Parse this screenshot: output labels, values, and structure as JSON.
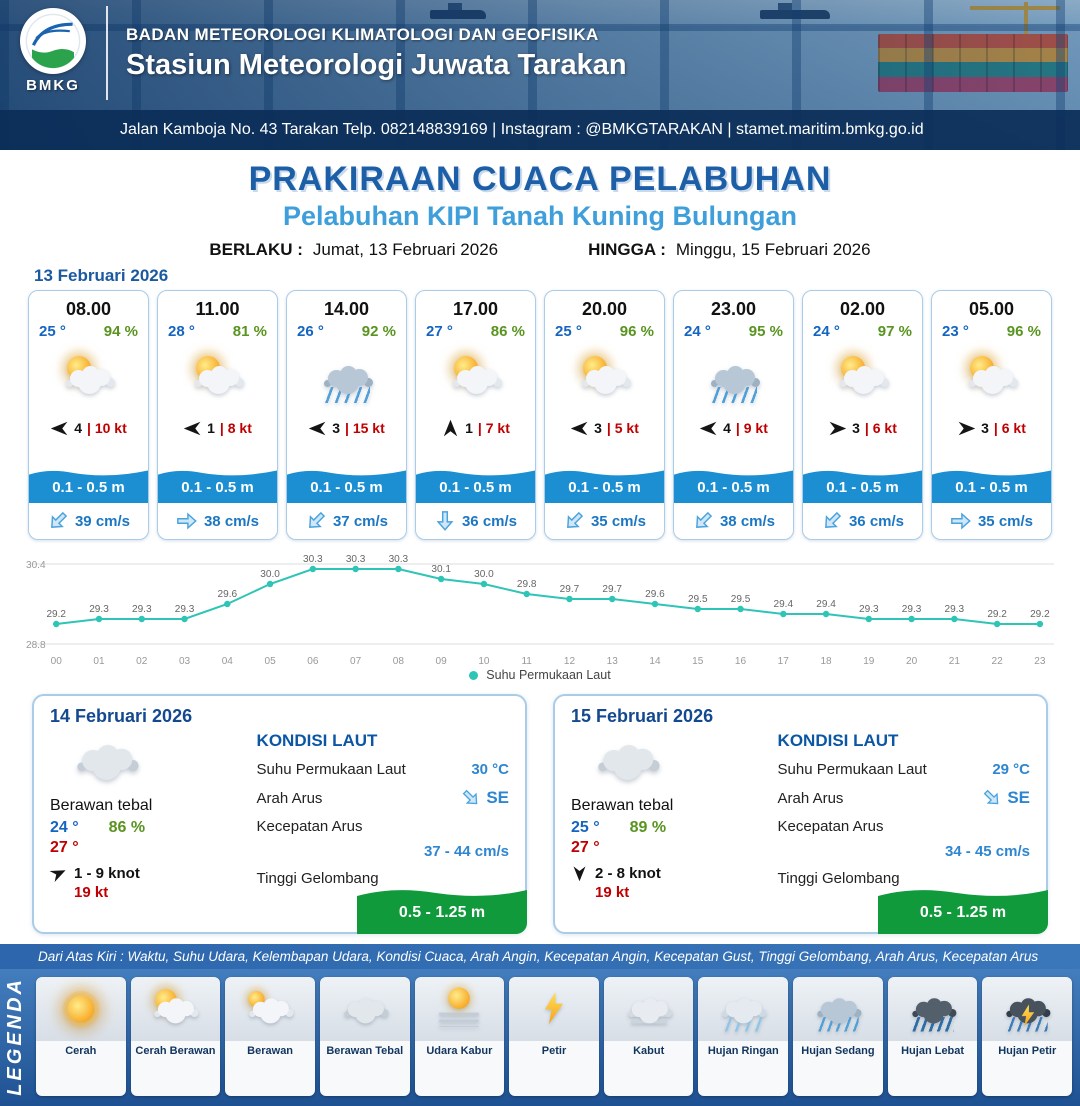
{
  "header": {
    "org": "BADAN METEOROLOGI KLIMATOLOGI DAN GEOFISIKA",
    "station": "Stasiun Meteorologi Juwata Tarakan",
    "address": "Jalan Kamboja No. 43 Tarakan  Telp. 082148839169 | Instagram : @BMKGTARAKAN | stamet.maritim.bmkg.go.id",
    "logo_label": "BMKG"
  },
  "title": {
    "main": "PRAKIRAAN CUACA PELABUHAN",
    "subtitle": "Pelabuhan KIPI Tanah Kuning Bulungan",
    "berlaku_label": "BERLAKU :",
    "berlaku_value": "Jumat, 13 Februari 2026",
    "hingga_label": "HINGGA :",
    "hingga_value": "Minggu, 15 Februari 2026"
  },
  "forecast": {
    "date": "13 Februari 2026",
    "cards": [
      {
        "time": "08.00",
        "temp": "25 °",
        "humidity": "94 %",
        "icon": "cerah-berawan",
        "wind": "4",
        "gust": "| 10 kt",
        "wind_deg": 180,
        "wave": "0.1 - 0.5 m",
        "current": "39 cm/s",
        "current_deg": 135
      },
      {
        "time": "11.00",
        "temp": "28 °",
        "humidity": "81 %",
        "icon": "cerah-berawan",
        "wind": "1",
        "gust": "| 8 kt",
        "wind_deg": 180,
        "wave": "0.1 - 0.5 m",
        "current": "38 cm/s",
        "current_deg": 0
      },
      {
        "time": "14.00",
        "temp": "26 °",
        "humidity": "92 %",
        "icon": "hujan-sedang",
        "wind": "3",
        "gust": "| 15 kt",
        "wind_deg": 180,
        "wave": "0.1 - 0.5 m",
        "current": "37 cm/s",
        "current_deg": 135
      },
      {
        "time": "17.00",
        "temp": "27 °",
        "humidity": "86 %",
        "icon": "cerah-berawan",
        "wind": "1",
        "gust": "| 7 kt",
        "wind_deg": 270,
        "wave": "0.1 - 0.5 m",
        "current": "36 cm/s",
        "current_deg": 90
      },
      {
        "time": "20.00",
        "temp": "25 °",
        "humidity": "96 %",
        "icon": "cerah-berawan",
        "wind": "3",
        "gust": "| 5 kt",
        "wind_deg": 180,
        "wave": "0.1 - 0.5 m",
        "current": "35 cm/s",
        "current_deg": 135
      },
      {
        "time": "23.00",
        "temp": "24 °",
        "humidity": "95 %",
        "icon": "hujan-sedang",
        "wind": "4",
        "gust": "| 9 kt",
        "wind_deg": 180,
        "wave": "0.1 - 0.5 m",
        "current": "38 cm/s",
        "current_deg": 135
      },
      {
        "time": "02.00",
        "temp": "24 °",
        "humidity": "97 %",
        "icon": "cerah-berawan",
        "wind": "3",
        "gust": "| 6 kt",
        "wind_deg": 0,
        "wave": "0.1 - 0.5 m",
        "current": "36 cm/s",
        "current_deg": 135
      },
      {
        "time": "05.00",
        "temp": "23 °",
        "humidity": "96 %",
        "icon": "cerah-berawan",
        "wind": "3",
        "gust": "| 6 kt",
        "wind_deg": 0,
        "wave": "0.1 - 0.5 m",
        "current": "35 cm/s",
        "current_deg": 0
      }
    ]
  },
  "chart_data": {
    "type": "line",
    "series_name": "Suhu Permukaan Laut",
    "x": [
      "00",
      "01",
      "02",
      "03",
      "04",
      "05",
      "06",
      "07",
      "08",
      "09",
      "10",
      "11",
      "12",
      "13",
      "14",
      "15",
      "16",
      "17",
      "18",
      "19",
      "20",
      "21",
      "22",
      "23"
    ],
    "values": [
      29.2,
      29.3,
      29.3,
      29.3,
      29.6,
      30.0,
      30.3,
      30.3,
      30.3,
      30.1,
      30.0,
      29.8,
      29.7,
      29.7,
      29.6,
      29.5,
      29.5,
      29.4,
      29.4,
      29.3,
      29.3,
      29.3,
      29.2,
      29.2
    ],
    "ylim": [
      28.8,
      30.4
    ],
    "color": "#2ec4b6",
    "grid": true,
    "legend_position": "bottom"
  },
  "days": [
    {
      "date": "14 Februari 2026",
      "icon": "berawan-tebal",
      "condition": "Berawan tebal",
      "temp_min": "24 °",
      "temp_max": "27 °",
      "humidity": "86 %",
      "wind_range": "1 - 9 knot",
      "gust": "19 kt",
      "wind_deg": -25,
      "sea": {
        "title": "KONDISI LAUT",
        "sst_label": "Suhu Permukaan Laut",
        "sst": "30 °C",
        "current_dir_label": "Arah Arus",
        "current_dir": "SE",
        "current_dir_deg": 45,
        "current_speed_label": "Kecepatan Arus",
        "current_speed": "37 - 44 cm/s",
        "wave_label": "Tinggi Gelombang",
        "wave": "0.5 - 1.25 m"
      }
    },
    {
      "date": "15 Februari 2026",
      "icon": "berawan-tebal",
      "condition": "Berawan tebal",
      "temp_min": "25 °",
      "temp_max": "27 °",
      "humidity": "89 %",
      "wind_range": "2  - 8 knot",
      "gust": "19 kt",
      "wind_deg": 90,
      "sea": {
        "title": "KONDISI LAUT",
        "sst_label": "Suhu Permukaan Laut",
        "sst": "29 °C",
        "current_dir_label": "Arah Arus",
        "current_dir": "SE",
        "current_dir_deg": 45,
        "current_speed_label": "Kecepatan Arus",
        "current_speed": "34 - 45 cm/s",
        "wave_label": "Tinggi Gelombang",
        "wave": "0.5 - 1.25 m"
      }
    }
  ],
  "legend": {
    "title": "LEGENDA",
    "description": "Dari Atas Kiri : Waktu, Suhu Udara, Kelembapan Udara, Kondisi Cuaca, Arah Angin, Kecepatan Angin, Kecepatan Gust, Tinggi Gelombang, Arah Arus, Kecepatan Arus",
    "items": [
      {
        "label": "Cerah",
        "icon": "cerah"
      },
      {
        "label": "Cerah Berawan",
        "icon": "cerah-berawan"
      },
      {
        "label": "Berawan",
        "icon": "berawan"
      },
      {
        "label": "Berawan Tebal",
        "icon": "berawan-tebal"
      },
      {
        "label": "Udara Kabur",
        "icon": "udara-kabur"
      },
      {
        "label": "Petir",
        "icon": "petir"
      },
      {
        "label": "Kabut",
        "icon": "kabut"
      },
      {
        "label": "Hujan Ringan",
        "icon": "hujan-ringan"
      },
      {
        "label": "Hujan Sedang",
        "icon": "hujan-sedang"
      },
      {
        "label": "Hujan Lebat",
        "icon": "hujan-lebat"
      },
      {
        "label": "Hujan Petir",
        "icon": "hujan-petir"
      }
    ]
  }
}
